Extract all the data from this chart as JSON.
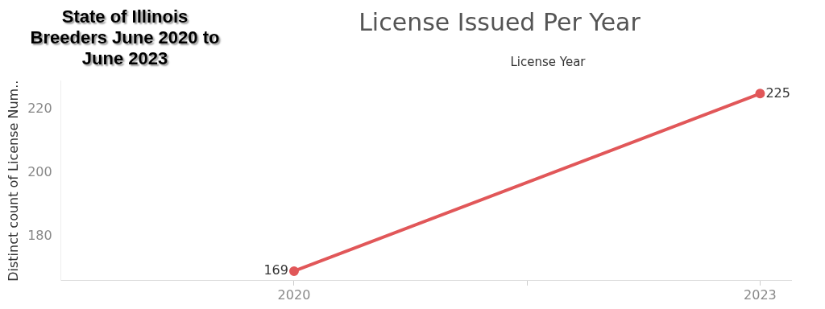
{
  "chart_data": {
    "type": "line",
    "title": "License Issued Per Year",
    "subtitle": "State of Illinois Breeders June 2020 to June 2023",
    "xlabel": "License Year",
    "ylabel": "Distinct count of License Num..",
    "x": [
      2020,
      2023
    ],
    "series": [
      {
        "color": "#e15759",
        "values": [
          169,
          225
        ]
      }
    ],
    "xlim": [
      2018.5,
      2023.2
    ],
    "xticks": [
      2020,
      {
        "value": 2021.5,
        "label": null
      },
      2023
    ],
    "ylim": [
      166,
      229
    ],
    "yticks": [
      180,
      200,
      220
    ],
    "data_labels": true,
    "marker": "circle",
    "grid": false,
    "legend": false
  }
}
